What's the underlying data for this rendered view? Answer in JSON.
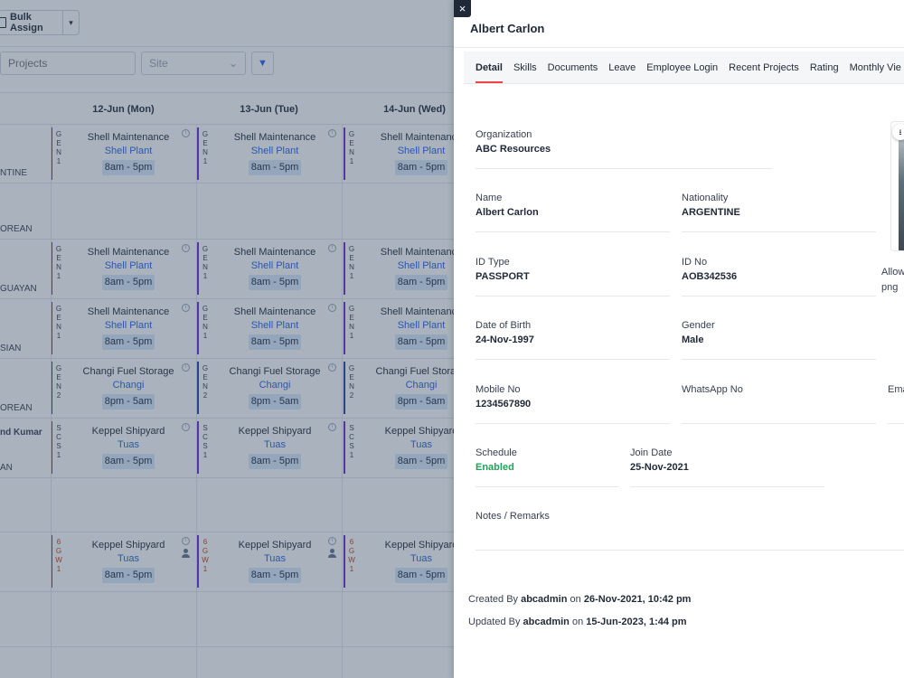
{
  "toolbar": {
    "bulk_assign_label": "Bulk Assign"
  },
  "filters": {
    "projects_placeholder": "Projects",
    "site_placeholder": "Site"
  },
  "schedule": {
    "days": [
      "12-Jun (Mon)",
      "13-Jun (Tue)",
      "14-Jun (Wed)"
    ],
    "rows": [
      {
        "name": "",
        "nationality": "NTINE",
        "code": [
          "G",
          "E",
          "N",
          "1"
        ],
        "title": "Shell Maintenance",
        "location": "Shell Plant",
        "time": "8am - 5pm",
        "bar": "purple"
      },
      {
        "name": "",
        "nationality": "OREAN",
        "code": [],
        "title": "",
        "location": "",
        "time": "",
        "bar": ""
      },
      {
        "name": "",
        "nationality": "GUAYAN",
        "code": [
          "G",
          "E",
          "N",
          "1"
        ],
        "title": "Shell Maintenance",
        "location": "Shell Plant",
        "time": "8am - 5pm",
        "bar": "purple"
      },
      {
        "name": "",
        "nationality": "SIAN",
        "code": [
          "G",
          "E",
          "N",
          "1"
        ],
        "title": "Shell Maintenance",
        "location": "Shell Plant",
        "time": "8am - 5pm",
        "bar": "purple"
      },
      {
        "name": "",
        "nationality": "OREAN",
        "code": [
          "G",
          "E",
          "N",
          "2"
        ],
        "title": "Changi Fuel Storage",
        "location": "Changi",
        "time": "8pm - 5am",
        "bar": "blue"
      },
      {
        "name": "nd Kumar",
        "nationality": "AN",
        "code": [
          "S",
          "C",
          "S",
          "1"
        ],
        "title": "Keppel Shipyard",
        "location": "Tuas",
        "time": "8am - 5pm",
        "bar": "purple"
      },
      {
        "name": "",
        "nationality": "",
        "code": [],
        "title": "",
        "location": "",
        "time": "",
        "bar": ""
      },
      {
        "name": "",
        "nationality": "",
        "code": [
          "6",
          "G",
          "W",
          "1"
        ],
        "title": "Keppel Shipyard",
        "location": "Tuas",
        "time": "8am - 5pm",
        "bar": "purple",
        "code_color": "orange",
        "person": true
      },
      {
        "name": "",
        "nationality": "",
        "code": [],
        "title": "",
        "location": "",
        "time": "",
        "bar": ""
      }
    ]
  },
  "drawer": {
    "title": "Albert Carlon",
    "tabs": [
      "Detail",
      "Skills",
      "Documents",
      "Leave",
      "Employee Login",
      "Recent Projects",
      "Rating",
      "Monthly Vie"
    ],
    "fields": {
      "organization": {
        "label": "Organization",
        "value": "ABC Resources"
      },
      "name": {
        "label": "Name",
        "value": "Albert Carlon"
      },
      "nationality": {
        "label": "Nationality",
        "value": "ARGENTINE"
      },
      "id_type": {
        "label": "ID Type",
        "value": "PASSPORT"
      },
      "id_no": {
        "label": "ID No",
        "value": "AOB342536"
      },
      "dob": {
        "label": "Date of Birth",
        "value": "24-Nov-1997"
      },
      "gender": {
        "label": "Gender",
        "value": "Male"
      },
      "mobile": {
        "label": "Mobile No",
        "value": "1234567890"
      },
      "whatsapp": {
        "label": "WhatsApp No",
        "value": ""
      },
      "email": {
        "label": "Ema",
        "value": ""
      },
      "schedule": {
        "label": "Schedule",
        "value": "Enabled"
      },
      "join_date": {
        "label": "Join Date",
        "value": "25-Nov-2021"
      },
      "notes": {
        "label": "Notes / Remarks",
        "value": ""
      }
    },
    "photo": {
      "allow_line1": "Allow",
      "allow_line2": "png"
    },
    "audit": {
      "created_prefix": "Created By",
      "created_by": "abcadmin",
      "created_on_word": "on",
      "created_at": "26-Nov-2021, 10:42 pm",
      "updated_prefix": "Updated By",
      "updated_by": "abcadmin",
      "updated_on_word": "on",
      "updated_at": "15-Jun-2023, 1:44 pm"
    }
  },
  "colors": {
    "accent": "#ef4444",
    "enabled": "#22a05a",
    "link": "#2563eb",
    "overlay": "#334761"
  }
}
